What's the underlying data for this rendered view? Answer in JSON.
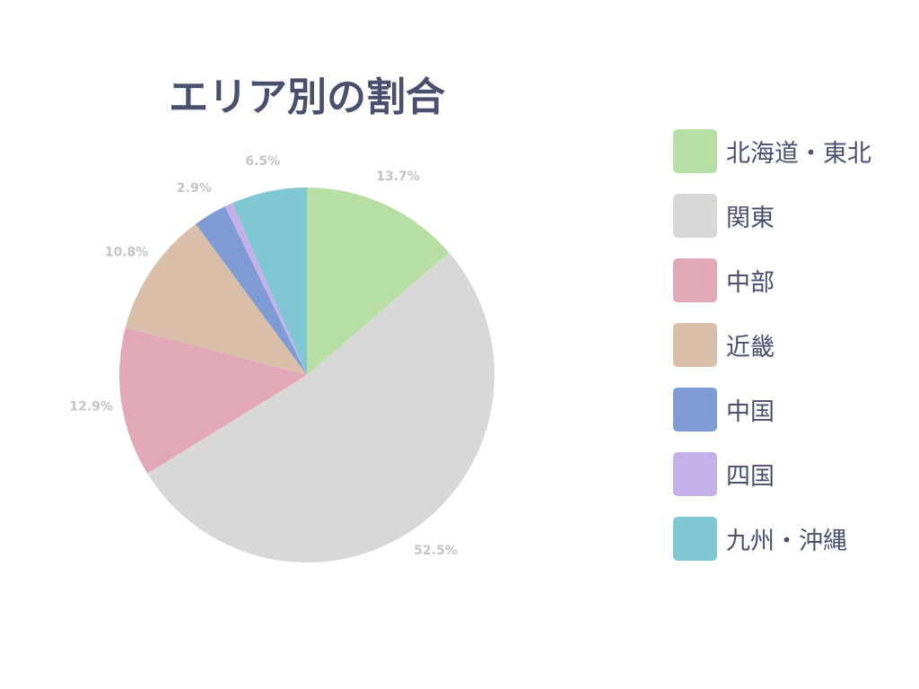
{
  "chart_data": {
    "type": "pie",
    "title": "エリア別の割合",
    "legend_position": "right",
    "categories": [
      "北海道・東北",
      "関東",
      "中部",
      "近畿",
      "中国",
      "四国",
      "九州・沖縄"
    ],
    "values": [
      13.7,
      52.5,
      12.9,
      10.8,
      2.9,
      0.7,
      6.5
    ],
    "labels": [
      "13.7%",
      "52.5%",
      "12.9%",
      "10.8%",
      "2.9%",
      "",
      "6.5%"
    ],
    "colors": [
      "#b8dfa3",
      "#d8d8d8",
      "#e3a8b7",
      "#d9bfa9",
      "#7e9bd3",
      "#c5b1ea",
      "#7fc7d3"
    ]
  }
}
